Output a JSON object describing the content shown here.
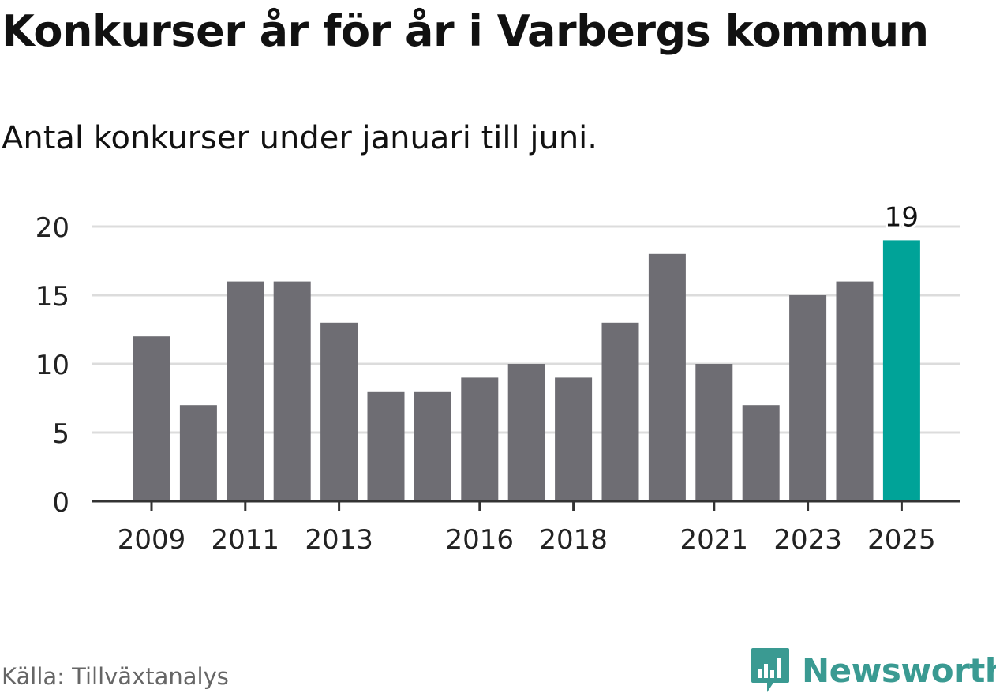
{
  "title": "Konkurser år för år i Varbergs kommun",
  "subtitle": "Antal konkurser under januari till juni.",
  "source": "Källa: Tillväxtanalys",
  "brand": {
    "name": "Newsworthy",
    "logo_icon": "chart-speech-bubble-icon",
    "color": "#3a9a92"
  },
  "colors": {
    "bar": "#6e6d73",
    "highlight": "#00a398",
    "grid": "#dcdcdc",
    "axis": "#333333",
    "tick_text": "#222222"
  },
  "chart_data": {
    "type": "bar",
    "title": "",
    "xlabel": "",
    "ylabel": "",
    "categories": [
      "2009",
      "2010",
      "2011",
      "2012",
      "2013",
      "2014",
      "2015",
      "2016",
      "2017",
      "2018",
      "2019",
      "2020",
      "2021",
      "2022",
      "2023",
      "2024",
      "2025"
    ],
    "values": [
      12,
      7,
      16,
      16,
      13,
      8,
      8,
      9,
      10,
      9,
      13,
      18,
      10,
      7,
      15,
      16,
      19
    ],
    "x_tick_labels": [
      "2009",
      "2011",
      "2013",
      "2016",
      "2018",
      "2021",
      "2023",
      "2025"
    ],
    "y_ticks": [
      0,
      5,
      10,
      15,
      20
    ],
    "ylim": [
      0,
      20
    ],
    "grid": true,
    "legend": "none",
    "highlight_category": "2025",
    "data_labels": [
      {
        "category": "2025",
        "text": "19"
      }
    ]
  }
}
